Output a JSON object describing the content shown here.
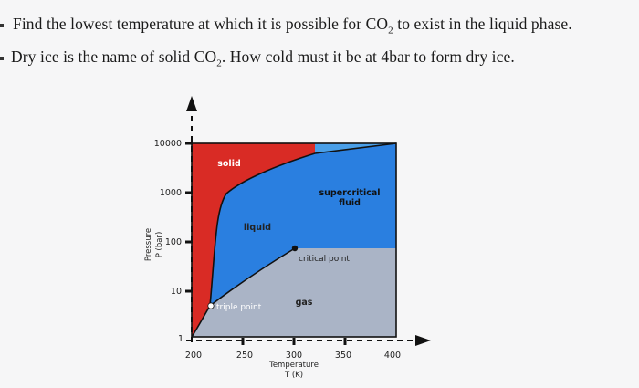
{
  "question_1": {
    "text_before": "Find the lowest temperature at which it is possible for CO",
    "subscript": "2",
    "text_after": " to exist in the liquid phase."
  },
  "question_2": {
    "text_before": "Dry ice is the name of solid CO",
    "subscript": "2",
    "text_after": ". How cold must it be at 4bar to form dry ice."
  },
  "diagram": {
    "y_ticks": [
      "10000",
      "1000",
      "100",
      "10",
      "1"
    ],
    "x_ticks": [
      "200",
      "250",
      "300",
      "350",
      "400"
    ],
    "y_label_line1": "Pressure",
    "y_label_line2": "P (bar)",
    "x_label_line1": "Temperature",
    "x_label_line2": "T (K)",
    "regions": {
      "solid": "solid",
      "liquid": "liquid",
      "supercritical_line1": "supercritical",
      "supercritical_line2": "fluid",
      "gas": "gas"
    },
    "points": {
      "critical": "critical point",
      "triple": "triple point"
    },
    "colors": {
      "solid": "#d92b25",
      "liquid": "#2a7fe0",
      "supercritical": "#4a9fe8",
      "gas": "#aab4c6",
      "outline": "#111111"
    }
  }
}
